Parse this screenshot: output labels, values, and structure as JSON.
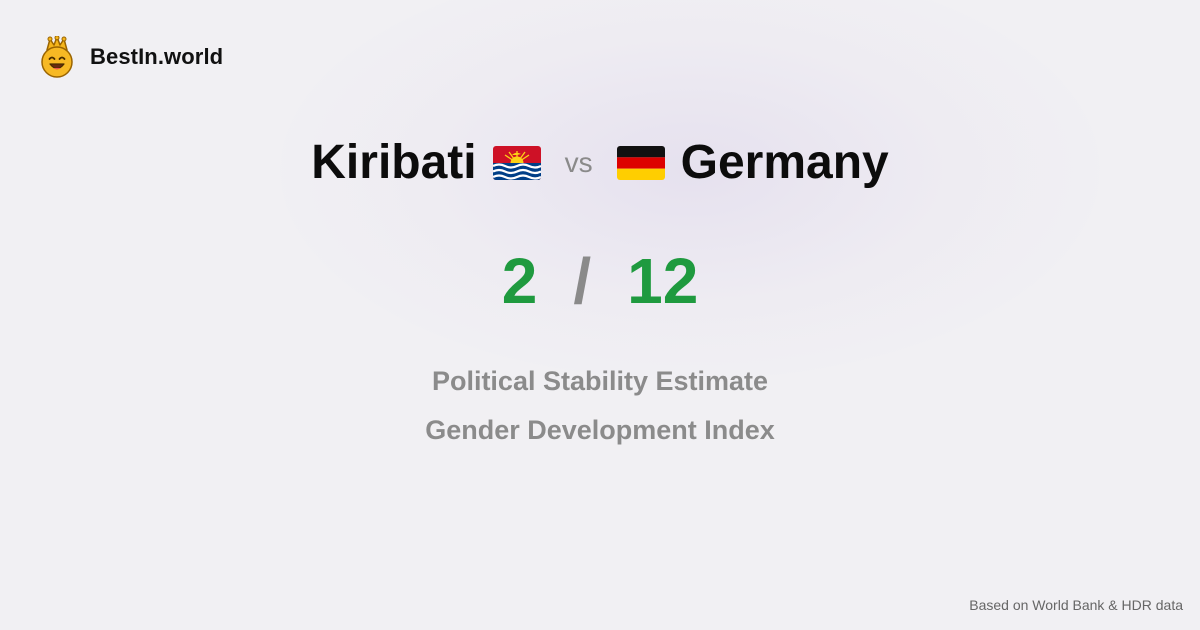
{
  "brand": {
    "name": "BestIn.world",
    "icon": "crown-smiley-icon"
  },
  "comparison": {
    "left_country": "Kiribati",
    "left_flag": "kiribati-flag-icon",
    "vs_label": "vs",
    "right_country": "Germany",
    "right_flag": "germany-flag-icon"
  },
  "scores": {
    "left": "2",
    "separator": "/",
    "right": "12"
  },
  "metrics": [
    "Political Stability Estimate",
    "Gender Development Index"
  ],
  "footer": {
    "source": "Based on World Bank & HDR data"
  },
  "colors": {
    "background": "#f1f0f3",
    "score_green": "#1f9a3f",
    "muted_gray": "#8b8b8b",
    "text_dark": "#0c0c0c"
  }
}
